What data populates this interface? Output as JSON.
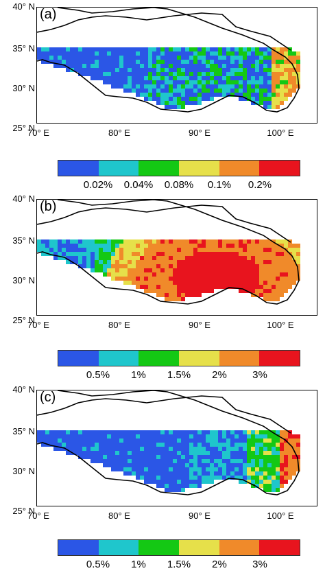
{
  "axes": {
    "lat_labels": [
      "40° N",
      "35° N",
      "30° N",
      "25° N"
    ],
    "lon_labels": [
      "70° E",
      "80° E",
      "90° E",
      "100° E"
    ]
  },
  "panels": [
    {
      "label": "(a)",
      "colorbar": {
        "colors": [
          "#2b56e6",
          "#1fc6cc",
          "#14c814",
          "#e6e04a",
          "#f08a2a",
          "#e8141e"
        ],
        "tick_labels": [
          "0.02%",
          "0.04%",
          "0.08%",
          "0.1%",
          "0.2%"
        ]
      }
    },
    {
      "label": "(b)",
      "colorbar": {
        "colors": [
          "#2b56e6",
          "#1fc6cc",
          "#14c814",
          "#e6e04a",
          "#f08a2a",
          "#e8141e"
        ],
        "tick_labels": [
          "0.5%",
          "1%",
          "1.5%",
          "2%",
          "3%"
        ]
      }
    },
    {
      "label": "(c)",
      "colorbar": {
        "colors": [
          "#2b56e6",
          "#1fc6cc",
          "#14c814",
          "#e6e04a",
          "#f08a2a",
          "#e8141e"
        ],
        "tick_labels": [
          "0.5%",
          "1%",
          "1.5%",
          "2%",
          "3%"
        ]
      }
    }
  ]
}
